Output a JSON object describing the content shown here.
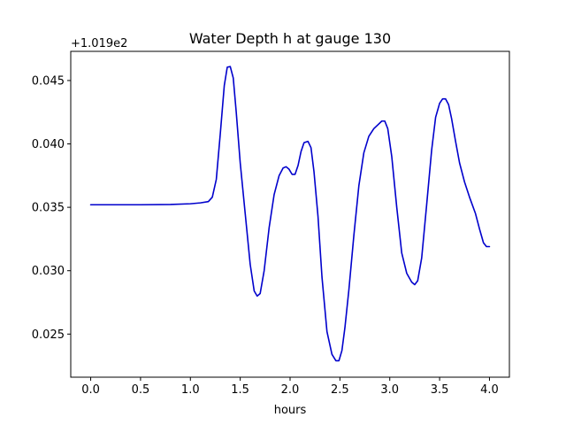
{
  "chart_data": {
    "type": "line",
    "title": "Water Depth h at gauge 130",
    "xlabel": "hours",
    "ylabel": "",
    "y_offset_label": "+1.019e2",
    "xlim": [
      -0.2,
      4.2
    ],
    "ylim": [
      0.0216,
      0.0473
    ],
    "x_ticks": [
      0.0,
      0.5,
      1.0,
      1.5,
      2.0,
      2.5,
      3.0,
      3.5,
      4.0
    ],
    "x_tick_labels": [
      "0.0",
      "0.5",
      "1.0",
      "1.5",
      "2.0",
      "2.5",
      "3.0",
      "3.5",
      "4.0"
    ],
    "y_ticks": [
      0.025,
      0.03,
      0.035,
      0.04,
      0.045
    ],
    "y_tick_labels": [
      "0.025",
      "0.030",
      "0.035",
      "0.040",
      "0.045"
    ],
    "grid": false,
    "legend": "none",
    "series": [
      {
        "color": "#0000cc",
        "x": [
          0.0,
          0.5,
          0.8,
          1.0,
          1.1,
          1.18,
          1.22,
          1.26,
          1.3,
          1.34,
          1.37,
          1.4,
          1.43,
          1.46,
          1.5,
          1.55,
          1.6,
          1.64,
          1.67,
          1.7,
          1.74,
          1.79,
          1.84,
          1.89,
          1.93,
          1.96,
          1.99,
          2.02,
          2.05,
          2.08,
          2.11,
          2.14,
          2.18,
          2.21,
          2.24,
          2.28,
          2.32,
          2.37,
          2.42,
          2.46,
          2.49,
          2.52,
          2.55,
          2.59,
          2.64,
          2.69,
          2.74,
          2.79,
          2.84,
          2.88,
          2.92,
          2.95,
          2.98,
          3.02,
          3.07,
          3.12,
          3.17,
          3.22,
          3.25,
          3.28,
          3.32,
          3.37,
          3.42,
          3.46,
          3.5,
          3.53,
          3.56,
          3.59,
          3.62,
          3.66,
          3.7,
          3.75,
          3.8,
          3.86,
          3.9,
          3.94,
          3.97,
          4.0
        ],
        "y": [
          0.0352,
          0.0352,
          0.03522,
          0.03528,
          0.03535,
          0.03545,
          0.0358,
          0.0372,
          0.0408,
          0.0446,
          0.04605,
          0.0461,
          0.0452,
          0.0425,
          0.0385,
          0.0345,
          0.0305,
          0.0284,
          0.028,
          0.0282,
          0.03,
          0.0334,
          0.036,
          0.0375,
          0.0381,
          0.0382,
          0.038,
          0.0376,
          0.0376,
          0.0383,
          0.0394,
          0.0401,
          0.0402,
          0.0397,
          0.0378,
          0.0343,
          0.0295,
          0.0252,
          0.0234,
          0.0229,
          0.0229,
          0.0237,
          0.0255,
          0.0285,
          0.0328,
          0.0367,
          0.0393,
          0.0406,
          0.0412,
          0.0415,
          0.0418,
          0.0418,
          0.0412,
          0.039,
          0.035,
          0.0314,
          0.0298,
          0.0291,
          0.0289,
          0.0292,
          0.031,
          0.0352,
          0.0395,
          0.0421,
          0.0432,
          0.04355,
          0.04355,
          0.0431,
          0.042,
          0.0402,
          0.0385,
          0.037,
          0.0358,
          0.0345,
          0.0333,
          0.0322,
          0.0319,
          0.0319
        ]
      }
    ]
  }
}
